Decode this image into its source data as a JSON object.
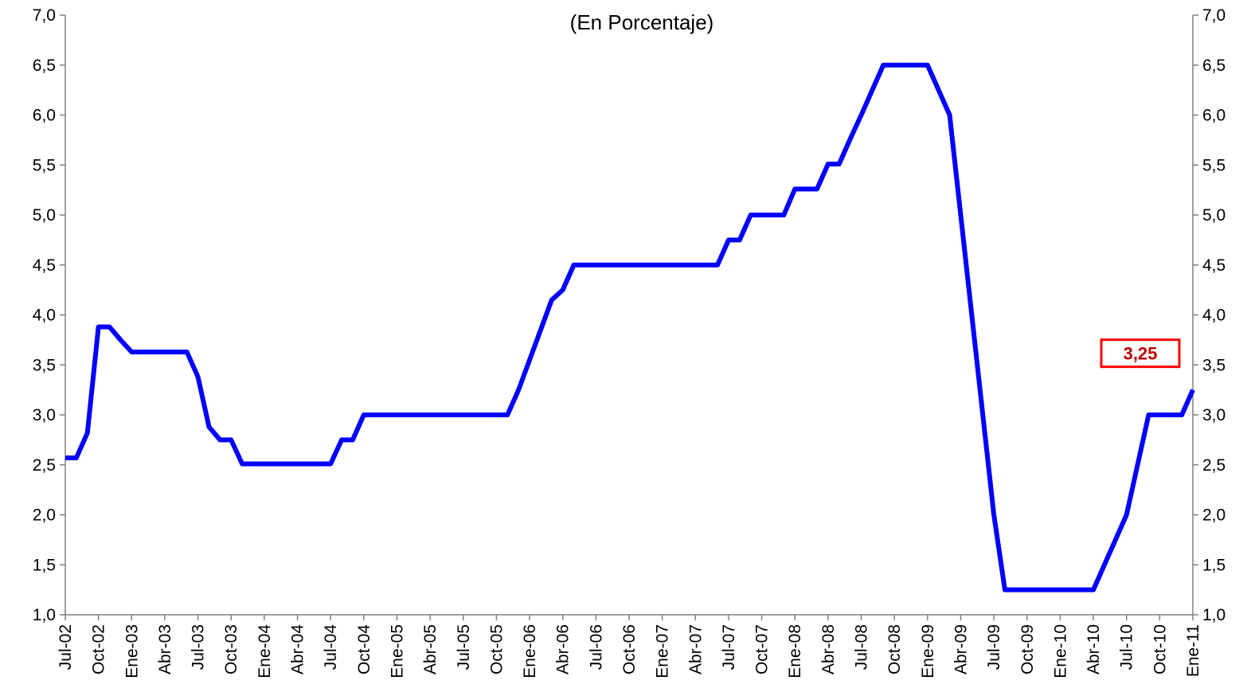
{
  "chart_data": {
    "type": "line",
    "title": "(En Porcentaje)",
    "xlabel": "",
    "ylabel": "",
    "ylim": [
      1.0,
      7.0
    ],
    "y_ticks": [
      "1,0",
      "1,5",
      "2,0",
      "2,5",
      "3,0",
      "3,5",
      "4,0",
      "4,5",
      "5,0",
      "5,5",
      "6,0",
      "6,5",
      "7,0"
    ],
    "y_tick_values": [
      1.0,
      1.5,
      2.0,
      2.5,
      3.0,
      3.5,
      4.0,
      4.5,
      5.0,
      5.5,
      6.0,
      6.5,
      7.0
    ],
    "dual_y_axis": true,
    "grid": false,
    "x_tick_labels": [
      "Jul-02",
      "Oct-02",
      "Ene-03",
      "Abr-03",
      "Jul-03",
      "Oct-03",
      "Ene-04",
      "Abr-04",
      "Jul-04",
      "Oct-04",
      "Ene-05",
      "Abr-05",
      "Jul-05",
      "Oct-05",
      "Ene-06",
      "Abr-06",
      "Jul-06",
      "Oct-06",
      "Ene-07",
      "Abr-07",
      "Jul-07",
      "Oct-07",
      "Ene-08",
      "Abr-08",
      "Jul-08",
      "Oct-08",
      "Ene-09",
      "Abr-09",
      "Jul-09",
      "Oct-09",
      "Ene-10",
      "Abr-10",
      "Jul-10",
      "Oct-10",
      "Ene-11"
    ],
    "series": [
      {
        "color": "#0000ff",
        "points": [
          [
            "Jul-02",
            2.57
          ],
          [
            "Ago-02",
            2.57
          ],
          [
            "Sep-02",
            2.82
          ],
          [
            "Oct-02",
            3.88
          ],
          [
            "Nov-02",
            3.88
          ],
          [
            "Dic-02",
            3.75
          ],
          [
            "Ene-03",
            3.63
          ],
          [
            "Feb-03",
            3.63
          ],
          [
            "Mar-03",
            3.63
          ],
          [
            "Abr-03",
            3.63
          ],
          [
            "May-03",
            3.63
          ],
          [
            "Jun-03",
            3.63
          ],
          [
            "Jul-03",
            3.38
          ],
          [
            "Ago-03",
            2.88
          ],
          [
            "Sep-03",
            2.75
          ],
          [
            "Oct-03",
            2.75
          ],
          [
            "Nov-03",
            2.51
          ],
          [
            "Dic-03",
            2.51
          ],
          [
            "Ene-04",
            2.51
          ],
          [
            "Feb-04",
            2.51
          ],
          [
            "Mar-04",
            2.51
          ],
          [
            "Abr-04",
            2.51
          ],
          [
            "May-04",
            2.51
          ],
          [
            "Jun-04",
            2.51
          ],
          [
            "Jul-04",
            2.51
          ],
          [
            "Ago-04",
            2.75
          ],
          [
            "Sep-04",
            2.75
          ],
          [
            "Oct-04",
            3.0
          ],
          [
            "Nov-04",
            3.0
          ],
          [
            "Dic-04",
            3.0
          ],
          [
            "Ene-05",
            3.0
          ],
          [
            "Feb-05",
            3.0
          ],
          [
            "Mar-05",
            3.0
          ],
          [
            "Abr-05",
            3.0
          ],
          [
            "May-05",
            3.0
          ],
          [
            "Jun-05",
            3.0
          ],
          [
            "Jul-05",
            3.0
          ],
          [
            "Ago-05",
            3.0
          ],
          [
            "Sep-05",
            3.0
          ],
          [
            "Oct-05",
            3.0
          ],
          [
            "Nov-05",
            3.0
          ],
          [
            "Dic-05",
            3.25
          ],
          [
            "Ene-06",
            3.55
          ],
          [
            "Feb-06",
            3.85
          ],
          [
            "Mar-06",
            4.15
          ],
          [
            "Abr-06",
            4.25
          ],
          [
            "May-06",
            4.5
          ],
          [
            "Jun-06",
            4.5
          ],
          [
            "Jul-06",
            4.5
          ],
          [
            "Ago-06",
            4.5
          ],
          [
            "Sep-06",
            4.5
          ],
          [
            "Oct-06",
            4.5
          ],
          [
            "Nov-06",
            4.5
          ],
          [
            "Dic-06",
            4.5
          ],
          [
            "Ene-07",
            4.5
          ],
          [
            "Feb-07",
            4.5
          ],
          [
            "Mar-07",
            4.5
          ],
          [
            "Abr-07",
            4.5
          ],
          [
            "May-07",
            4.5
          ],
          [
            "Jun-07",
            4.5
          ],
          [
            "Jul-07",
            4.75
          ],
          [
            "Ago-07",
            4.75
          ],
          [
            "Sep-07",
            5.0
          ],
          [
            "Oct-07",
            5.0
          ],
          [
            "Nov-07",
            5.0
          ],
          [
            "Dic-07",
            5.0
          ],
          [
            "Ene-08",
            5.26
          ],
          [
            "Feb-08",
            5.26
          ],
          [
            "Mar-08",
            5.26
          ],
          [
            "Abr-08",
            5.51
          ],
          [
            "May-08",
            5.51
          ],
          [
            "Jun-08",
            5.76
          ],
          [
            "Jul-08",
            6.0
          ],
          [
            "Ago-08",
            6.25
          ],
          [
            "Sep-08",
            6.5
          ],
          [
            "Oct-08",
            6.5
          ],
          [
            "Nov-08",
            6.5
          ],
          [
            "Dic-08",
            6.5
          ],
          [
            "Ene-09",
            6.5
          ],
          [
            "Feb-09",
            6.25
          ],
          [
            "Mar-09",
            6.0
          ],
          [
            "Abr-09",
            5.0
          ],
          [
            "May-09",
            4.0
          ],
          [
            "Jun-09",
            3.0
          ],
          [
            "Jul-09",
            2.0
          ],
          [
            "Ago-09",
            1.25
          ],
          [
            "Sep-09",
            1.25
          ],
          [
            "Oct-09",
            1.25
          ],
          [
            "Nov-09",
            1.25
          ],
          [
            "Dic-09",
            1.25
          ],
          [
            "Ene-10",
            1.25
          ],
          [
            "Feb-10",
            1.25
          ],
          [
            "Mar-10",
            1.25
          ],
          [
            "Abr-10",
            1.25
          ],
          [
            "May-10",
            1.5
          ],
          [
            "Jun-10",
            1.75
          ],
          [
            "Jul-10",
            2.0
          ],
          [
            "Ago-10",
            2.5
          ],
          [
            "Sep-10",
            3.0
          ],
          [
            "Oct-10",
            3.0
          ],
          [
            "Nov-10",
            3.0
          ],
          [
            "Dic-10",
            3.0
          ],
          [
            "Ene-11",
            3.25
          ]
        ]
      }
    ],
    "annotations": [
      {
        "text": "3,25",
        "color": "#c00000",
        "border": "#ff0000",
        "anchor_x": "Ene-11",
        "anchor_y": 3.25
      }
    ]
  }
}
